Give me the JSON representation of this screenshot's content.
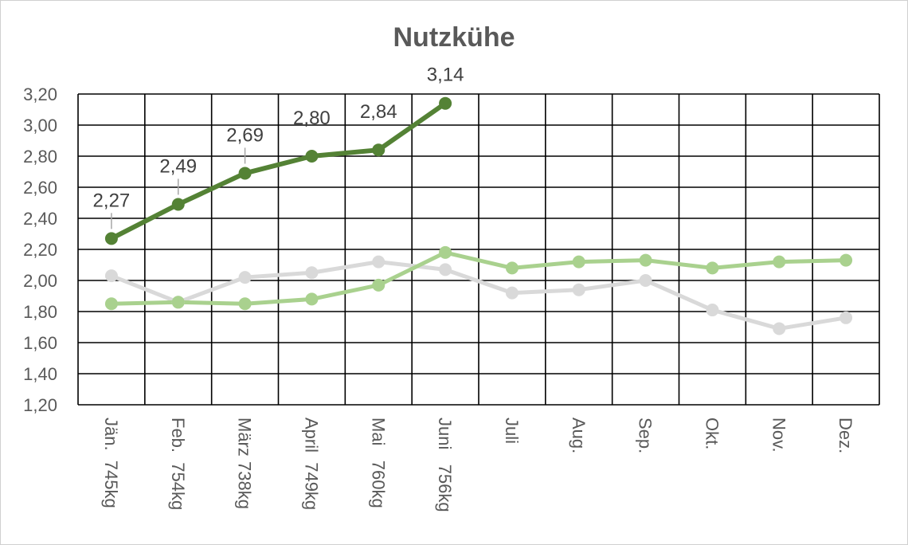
{
  "chart_data": {
    "type": "line",
    "title": "Nutzkühe",
    "categories": [
      "Jän.  745kg",
      "Feb.  754kg",
      "März 738kg",
      "April  749kg",
      "Mai   760kg",
      "Juni   756kg",
      "Juli",
      "Aug.",
      "Sep.",
      "Okt.",
      "Nov.",
      "Dez."
    ],
    "ylim": [
      1.2,
      3.2
    ],
    "yticks": [
      "1,20",
      "1,40",
      "1,60",
      "1,80",
      "2,00",
      "2,20",
      "2,40",
      "2,60",
      "2,80",
      "3,00",
      "3,20"
    ],
    "grid": true,
    "series": [
      {
        "color": "#d9d9d9",
        "values": [
          2.03,
          1.86,
          2.02,
          2.05,
          2.12,
          2.07,
          1.92,
          1.94,
          2.0,
          1.81,
          1.69,
          1.76
        ]
      },
      {
        "color": "#a9d18e",
        "values": [
          1.85,
          1.86,
          1.85,
          1.88,
          1.97,
          2.18,
          2.08,
          2.12,
          2.13,
          2.08,
          2.12,
          2.13
        ]
      },
      {
        "color": "#548235",
        "values": [
          2.27,
          2.49,
          2.69,
          2.8,
          2.84,
          3.14,
          null,
          null,
          null,
          null,
          null,
          null
        ],
        "data_labels": [
          "2,27",
          "2,49",
          "2,69",
          "2,80",
          "2,84",
          "3,14"
        ]
      }
    ]
  }
}
